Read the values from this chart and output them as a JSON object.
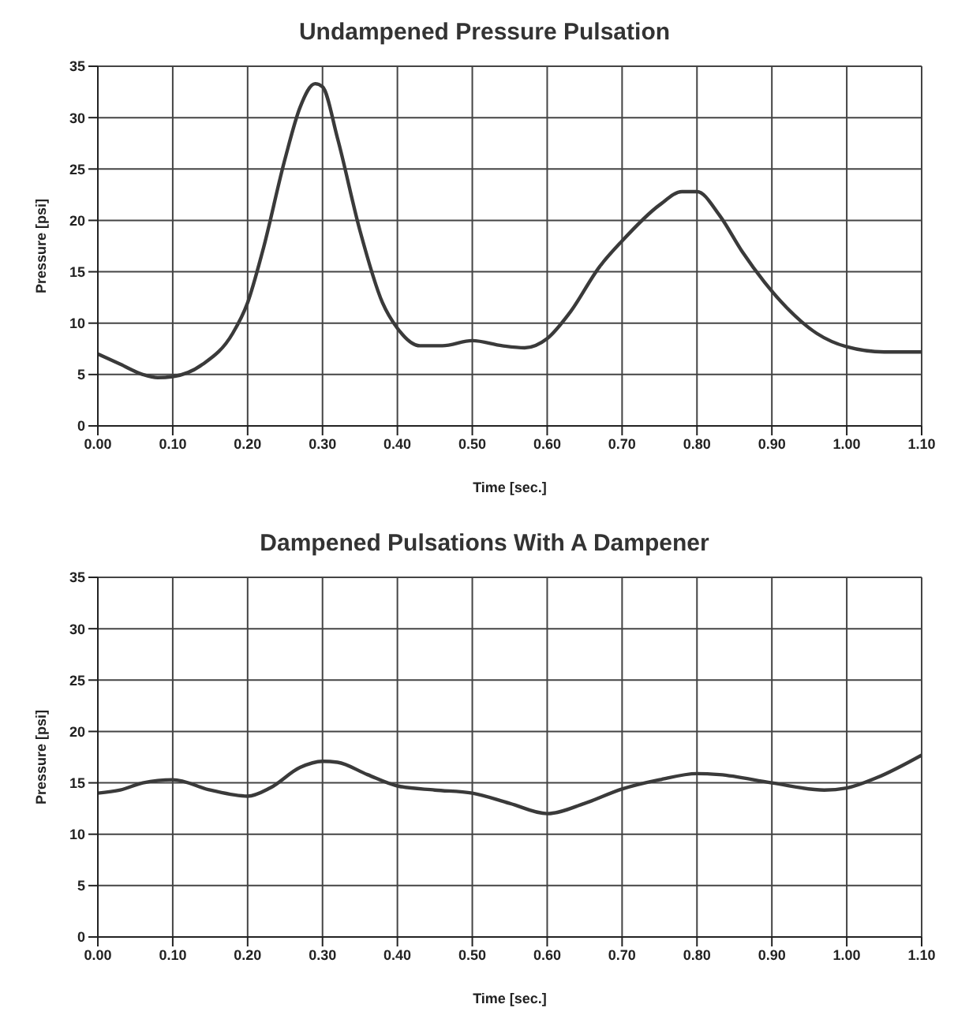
{
  "chart_data": [
    {
      "type": "line",
      "title": "Undampened Pressure Pulsation",
      "xlabel": "Time [sec.]",
      "ylabel": "Pressure [psi]",
      "color": "#3a3a3a",
      "grid": true,
      "legend": false,
      "marker": "none",
      "line_style": "solid",
      "x": [
        0,
        0.03,
        0.06,
        0.08,
        0.1,
        0.14,
        0.18,
        0.2,
        0.22,
        0.25,
        0.27,
        0.29,
        0.3,
        0.32,
        0.35,
        0.38,
        0.4,
        0.43,
        0.46,
        0.5,
        0.54,
        0.57,
        0.6,
        0.63,
        0.67,
        0.7,
        0.75,
        0.78,
        0.8,
        0.83,
        0.86,
        0.89,
        0.92,
        0.96,
        1.0,
        1.05,
        1.1
      ],
      "values": [
        7,
        6,
        5,
        4.7,
        4.8,
        6,
        9,
        12,
        17,
        26,
        31,
        33.3,
        33,
        28,
        19,
        12,
        9.5,
        7.8,
        7.8,
        8.3,
        7.8,
        7.6,
        8.5,
        11,
        15.5,
        18,
        21.5,
        22.8,
        22.8,
        20.5,
        17,
        14,
        11.5,
        9,
        7.7,
        7.2,
        7.2
      ],
      "xlim": [
        0,
        1.1
      ],
      "ylim": [
        0,
        35
      ],
      "xticks": [
        {
          "value": 0,
          "label": "0.00"
        },
        {
          "value": 0.1,
          "label": "0.10"
        },
        {
          "value": 0.2,
          "label": "0.20"
        },
        {
          "value": 0.3,
          "label": "0.30"
        },
        {
          "value": 0.4,
          "label": "0.40"
        },
        {
          "value": 0.5,
          "label": "0.50"
        },
        {
          "value": 0.6,
          "label": "0.60"
        },
        {
          "value": 0.7,
          "label": "0.70"
        },
        {
          "value": 0.8,
          "label": "0.80"
        },
        {
          "value": 0.9,
          "label": "0.90"
        },
        {
          "value": 1.0,
          "label": "1.00"
        },
        {
          "value": 1.1,
          "label": "1.10"
        }
      ],
      "yticks": [
        0,
        5,
        10,
        15,
        20,
        25,
        30,
        35
      ]
    },
    {
      "type": "line",
      "title": "Dampened Pulsations With A Dampener",
      "xlabel": "Time [sec.]",
      "ylabel": "Pressure [psi]",
      "color": "#3a3a3a",
      "grid": true,
      "legend": false,
      "marker": "none",
      "line_style": "solid",
      "x": [
        0,
        0.03,
        0.06,
        0.1,
        0.15,
        0.2,
        0.23,
        0.27,
        0.3,
        0.32,
        0.36,
        0.4,
        0.45,
        0.5,
        0.55,
        0.6,
        0.65,
        0.7,
        0.75,
        0.8,
        0.83,
        0.9,
        0.97,
        1.0,
        1.04,
        1.1
      ],
      "values": [
        14,
        14.3,
        15,
        15.3,
        14.3,
        13.7,
        14.5,
        16.5,
        17.1,
        17,
        15.8,
        14.7,
        14.3,
        14,
        13,
        12,
        13,
        14.4,
        15.3,
        15.9,
        15.8,
        15,
        14.3,
        14.5,
        15.5,
        17.7
      ],
      "xlim": [
        0,
        1.1
      ],
      "ylim": [
        0,
        35
      ],
      "xticks": [
        {
          "value": 0,
          "label": "0.00"
        },
        {
          "value": 0.1,
          "label": "0.10"
        },
        {
          "value": 0.2,
          "label": "0.20"
        },
        {
          "value": 0.3,
          "label": "0.30"
        },
        {
          "value": 0.4,
          "label": "0.40"
        },
        {
          "value": 0.5,
          "label": "0.50"
        },
        {
          "value": 0.6,
          "label": "0.60"
        },
        {
          "value": 0.7,
          "label": "0.70"
        },
        {
          "value": 0.8,
          "label": "0.80"
        },
        {
          "value": 0.9,
          "label": "0.90"
        },
        {
          "value": 1.0,
          "label": "1.00"
        },
        {
          "value": 1.1,
          "label": "1.10"
        }
      ],
      "yticks": [
        0,
        5,
        10,
        15,
        20,
        25,
        30,
        35
      ]
    }
  ]
}
